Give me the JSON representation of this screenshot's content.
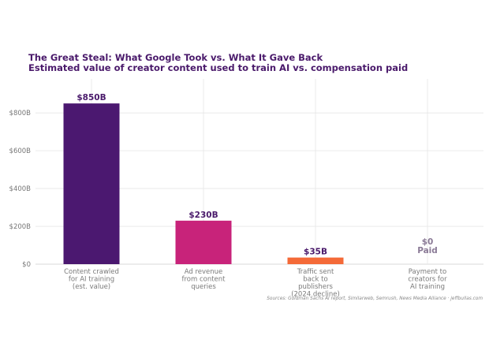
{
  "chart_data": {
    "type": "bar",
    "title": "The Great Steal: What Google Took vs. What It Gave Back",
    "subtitle": "Estimated value of creator content used to train AI vs. compensation paid",
    "categories": [
      [
        "Content crawled",
        "for AI training",
        "(est. value)"
      ],
      [
        "Ad revenue",
        "from content",
        "queries"
      ],
      [
        "Traffic sent",
        "back to",
        "publishers",
        "(2024 decline)"
      ],
      [
        "Payment to",
        "creators for",
        "AI training"
      ]
    ],
    "values": [
      850,
      230,
      35,
      0
    ],
    "data_labels": [
      [
        "$850B"
      ],
      [
        "$230B"
      ],
      [
        "$35B"
      ],
      [
        "$0",
        "Paid"
      ]
    ],
    "colors": [
      "#4b1870",
      "#c8237a",
      "#f46a38",
      "#bbbbbb"
    ],
    "label_colors": [
      "#4a1a6b",
      "#4a1a6b",
      "#4a1a6b",
      "#8a7a96"
    ],
    "ylim": [
      0,
      980
    ],
    "yticks": [
      0,
      200,
      400,
      600,
      800
    ],
    "ytick_labels": [
      "$0",
      "$200B",
      "$400B",
      "$600B",
      "$800B"
    ],
    "grid": true,
    "source": "Sources: Goldman Sachs AI report, Similarweb, Semrush, News Media Alliance  ·  jeffbullas.com"
  }
}
